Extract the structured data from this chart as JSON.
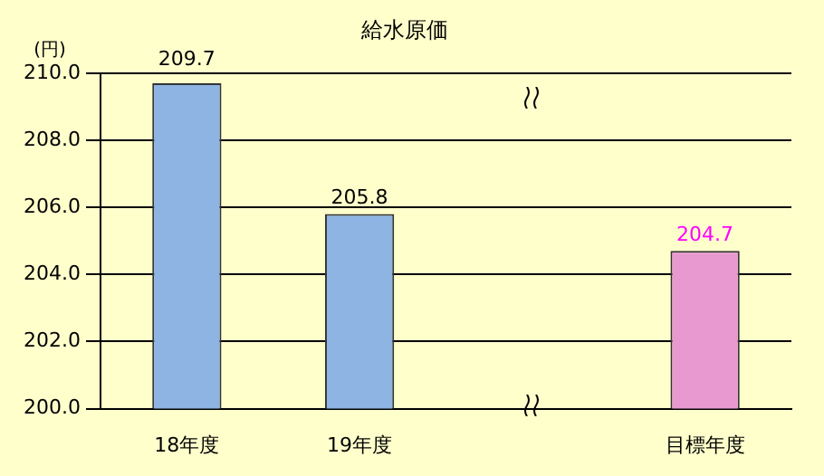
{
  "chart_data": {
    "type": "bar",
    "title": "給水原価",
    "ylabel": "(円)",
    "categories": [
      "18年度",
      "19年度",
      null,
      "目標年度"
    ],
    "values": [
      209.7,
      205.8,
      null,
      204.7
    ],
    "colors": [
      "#8db4e2",
      "#8db4e2",
      "#8db4e2",
      "#e89ad0"
    ],
    "ylim": [
      200,
      210
    ],
    "yticks": [
      {
        "value": 200,
        "label": "200.0"
      },
      {
        "value": 202,
        "label": "202.0"
      },
      {
        "value": 204,
        "label": "204.0"
      },
      {
        "value": 206,
        "label": "206.0"
      },
      {
        "value": 208,
        "label": "208.0"
      },
      {
        "value": 210,
        "label": "210.0"
      }
    ],
    "grid": "y",
    "data_labels": true
  }
}
